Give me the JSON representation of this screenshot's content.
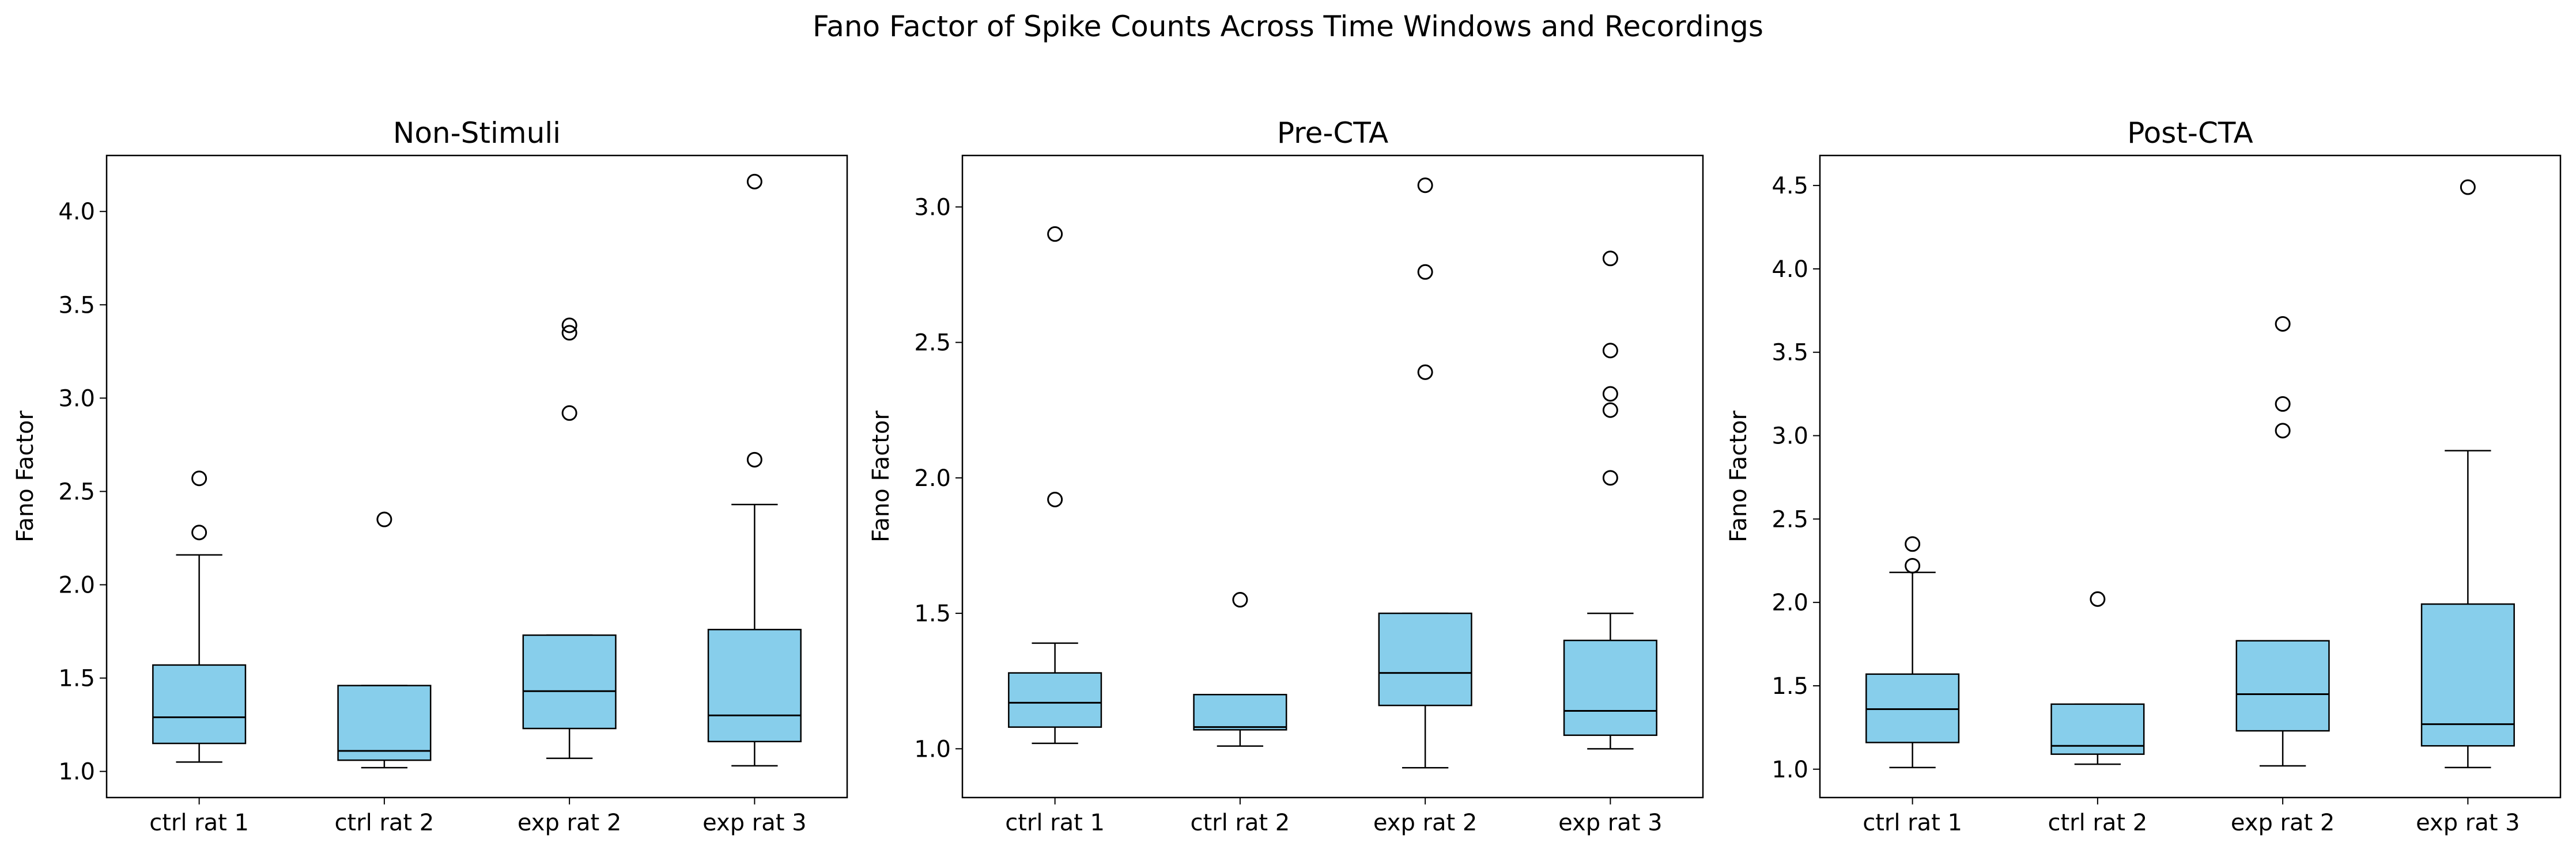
{
  "figure_title": "Fano Factor of Spike Counts Across Time Windows and Recordings",
  "colors": {
    "box_fill": "#87ceeb",
    "line": "#000000",
    "background": "#ffffff"
  },
  "chart_data": [
    {
      "type": "box",
      "title": "Non-Stimuli",
      "xlabel": "",
      "ylabel": "Fano Factor",
      "ylim": [
        0.86,
        4.3
      ],
      "yticks": [
        1.0,
        1.5,
        2.0,
        2.5,
        3.0,
        3.5,
        4.0
      ],
      "ytick_labels": [
        "1.0",
        "1.5",
        "2.0",
        "2.5",
        "3.0",
        "3.5",
        "4.0"
      ],
      "categories": [
        "ctrl rat 1",
        "ctrl rat 2",
        "exp rat 2",
        "exp rat 3"
      ],
      "boxes": [
        {
          "whisker_low": 1.05,
          "q1": 1.15,
          "median": 1.29,
          "q3": 1.57,
          "whisker_high": 2.16,
          "outliers": [
            2.28,
            2.57
          ]
        },
        {
          "whisker_low": 1.02,
          "q1": 1.06,
          "median": 1.11,
          "q3": 1.46,
          "whisker_high": 1.46,
          "outliers": [
            2.35
          ]
        },
        {
          "whisker_low": 1.07,
          "q1": 1.23,
          "median": 1.43,
          "q3": 1.73,
          "whisker_high": 1.73,
          "outliers": [
            2.92,
            3.35,
            3.39
          ]
        },
        {
          "whisker_low": 1.03,
          "q1": 1.16,
          "median": 1.3,
          "q3": 1.76,
          "whisker_high": 2.43,
          "outliers": [
            2.67,
            4.16
          ]
        }
      ]
    },
    {
      "type": "box",
      "title": "Pre-CTA",
      "xlabel": "",
      "ylabel": "Fano Factor",
      "ylim": [
        0.82,
        3.19
      ],
      "yticks": [
        1.0,
        1.5,
        2.0,
        2.5,
        3.0
      ],
      "ytick_labels": [
        "1.0",
        "1.5",
        "2.0",
        "2.5",
        "3.0"
      ],
      "categories": [
        "ctrl rat 1",
        "ctrl rat 2",
        "exp rat 2",
        "exp rat 3"
      ],
      "boxes": [
        {
          "whisker_low": 1.02,
          "q1": 1.08,
          "median": 1.17,
          "q3": 1.28,
          "whisker_high": 1.39,
          "outliers": [
            1.92,
            2.9
          ]
        },
        {
          "whisker_low": 1.01,
          "q1": 1.07,
          "median": 1.08,
          "q3": 1.2,
          "whisker_high": 1.2,
          "outliers": [
            1.55
          ]
        },
        {
          "whisker_low": 0.93,
          "q1": 1.16,
          "median": 1.28,
          "q3": 1.5,
          "whisker_high": 1.5,
          "outliers": [
            2.39,
            2.76,
            3.08
          ]
        },
        {
          "whisker_low": 1.0,
          "q1": 1.05,
          "median": 1.14,
          "q3": 1.4,
          "whisker_high": 1.5,
          "outliers": [
            2.0,
            2.25,
            2.31,
            2.47,
            2.81
          ]
        }
      ]
    },
    {
      "type": "box",
      "title": "Post-CTA",
      "xlabel": "",
      "ylabel": "Fano Factor",
      "ylim": [
        0.83,
        4.68
      ],
      "yticks": [
        1.0,
        1.5,
        2.0,
        2.5,
        3.0,
        3.5,
        4.0,
        4.5
      ],
      "ytick_labels": [
        "1.0",
        "1.5",
        "2.0",
        "2.5",
        "3.0",
        "3.5",
        "4.0",
        "4.5"
      ],
      "categories": [
        "ctrl rat 1",
        "ctrl rat 2",
        "exp rat 2",
        "exp rat 3"
      ],
      "boxes": [
        {
          "whisker_low": 1.01,
          "q1": 1.16,
          "median": 1.36,
          "q3": 1.57,
          "whisker_high": 2.18,
          "outliers": [
            2.22,
            2.35
          ]
        },
        {
          "whisker_low": 1.03,
          "q1": 1.09,
          "median": 1.14,
          "q3": 1.39,
          "whisker_high": 1.39,
          "outliers": [
            2.02
          ]
        },
        {
          "whisker_low": 1.02,
          "q1": 1.23,
          "median": 1.45,
          "q3": 1.77,
          "whisker_high": 1.77,
          "outliers": [
            3.03,
            3.19,
            3.67
          ]
        },
        {
          "whisker_low": 1.01,
          "q1": 1.14,
          "median": 1.27,
          "q3": 1.99,
          "whisker_high": 2.91,
          "outliers": [
            4.49
          ]
        }
      ]
    }
  ]
}
